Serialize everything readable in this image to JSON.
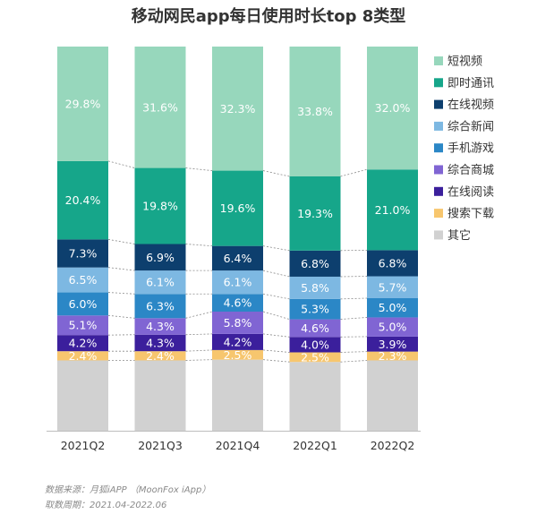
{
  "chart_data": {
    "type": "bar",
    "stacked": true,
    "title": "移动网民app每日使用时长top 8类型",
    "categories": [
      "2021Q2",
      "2021Q3",
      "2021Q4",
      "2022Q1",
      "2022Q2"
    ],
    "series": [
      {
        "name": "其它",
        "color": "#d1d1d1",
        "values": [
          null,
          null,
          null,
          null,
          null
        ]
      },
      {
        "name": "搜索下载",
        "color": "#f7c66e",
        "values": [
          2.4,
          2.4,
          2.5,
          2.5,
          2.3
        ]
      },
      {
        "name": "在线阅读",
        "color": "#3b1f9c",
        "values": [
          4.2,
          4.3,
          4.2,
          4.0,
          3.9
        ]
      },
      {
        "name": "综合商城",
        "color": "#8065d3",
        "values": [
          5.1,
          4.3,
          5.8,
          4.6,
          5.0
        ]
      },
      {
        "name": "手机游戏",
        "color": "#2b87c6",
        "values": [
          6.0,
          6.3,
          4.6,
          5.3,
          5.0
        ]
      },
      {
        "name": "综合新闻",
        "color": "#7db8e2",
        "values": [
          6.5,
          6.1,
          6.1,
          5.8,
          5.7
        ]
      },
      {
        "name": "在线视频",
        "color": "#0d3f6e",
        "values": [
          7.3,
          6.9,
          6.4,
          6.8,
          6.8
        ]
      },
      {
        "name": "即时通讯",
        "color": "#16a68a",
        "values": [
          20.4,
          19.8,
          19.6,
          19.3,
          21.0
        ]
      },
      {
        "name": "短视频",
        "color": "#97d7bc",
        "values": [
          29.8,
          31.6,
          32.3,
          33.8,
          32.0
        ]
      }
    ],
    "legend_order": [
      "短视频",
      "即时通讯",
      "在线视频",
      "综合新闻",
      "手机游戏",
      "综合商城",
      "在线阅读",
      "搜索下载",
      "其它"
    ],
    "value_suffix": "%",
    "ylim": [
      0,
      100
    ],
    "legend_position": "right",
    "grid": false,
    "watermark": "MoonFox"
  },
  "footnotes": {
    "source": "数据来源：月狐iAPP （MoonFox iApp）",
    "period": "取数周期：2021.04-2022.06"
  }
}
